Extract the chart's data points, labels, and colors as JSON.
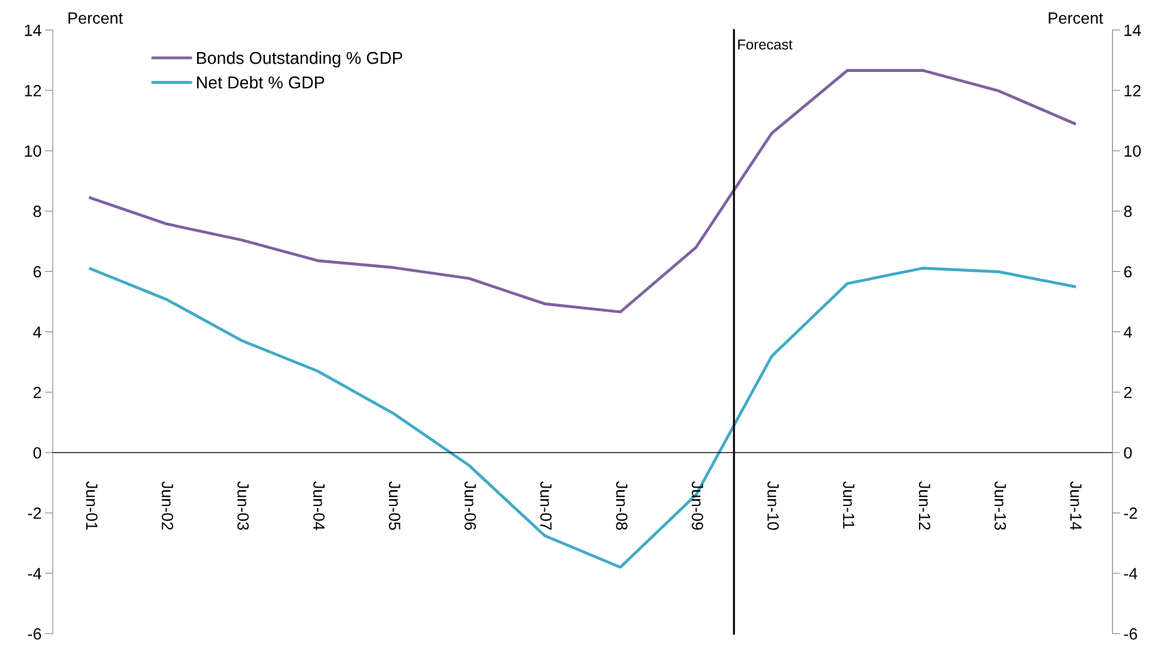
{
  "chart_data": {
    "type": "line",
    "ylabel": "Percent",
    "y2label": "Percent",
    "x": [
      "2001-06",
      "2002-06",
      "2003-06",
      "2004-06",
      "2005-06",
      "2006-06",
      "2007-06",
      "2008-06",
      "2009-06",
      "2010-06",
      "2011-06",
      "2012-06",
      "2013-06",
      "2014-06"
    ],
    "series": [
      {
        "name": "Bonds Outstanding % GDP",
        "color": "#7e61a0",
        "values": [
          8.44,
          7.58,
          7.04,
          6.36,
          6.13,
          5.77,
          4.93,
          4.66,
          6.8,
          10.58,
          12.66,
          12.66,
          11.98,
          10.9
        ]
      },
      {
        "name": "Net Debt % GDP",
        "color": "#41aac6",
        "values": [
          6.09,
          5.08,
          3.71,
          2.7,
          1.3,
          -0.42,
          -2.75,
          -3.8,
          -1.4,
          3.19,
          5.6,
          6.11,
          5.99,
          5.5
        ]
      }
    ],
    "xlim": [
      "2000-12",
      "2014-12"
    ],
    "xticks": [
      {
        "value": "2001-06",
        "label": "Jun-01"
      },
      {
        "value": "2002-06",
        "label": "Jun-02"
      },
      {
        "value": "2003-06",
        "label": "Jun-03"
      },
      {
        "value": "2004-06",
        "label": "Jun-04"
      },
      {
        "value": "2005-06",
        "label": "Jun-05"
      },
      {
        "value": "2006-06",
        "label": "Jun-06"
      },
      {
        "value": "2007-06",
        "label": "Jun-07"
      },
      {
        "value": "2008-06",
        "label": "Jun-08"
      },
      {
        "value": "2009-06",
        "label": "Jun-09"
      },
      {
        "value": "2010-06",
        "label": "Jun-10"
      },
      {
        "value": "2011-06",
        "label": "Jun-11"
      },
      {
        "value": "2012-06",
        "label": "Jun-12"
      },
      {
        "value": "2013-06",
        "label": "Jun-13"
      },
      {
        "value": "2014-06",
        "label": "Jun-14"
      }
    ],
    "ylim": [
      -6,
      14
    ],
    "yticks": [
      -6,
      -4,
      -2,
      0,
      2,
      4,
      6,
      8,
      10,
      12,
      14
    ],
    "y2lim": [
      -6,
      14
    ],
    "y2ticks": [
      -6,
      -4,
      -2,
      0,
      2,
      4,
      6,
      8,
      10,
      12,
      14
    ],
    "ref_lines": [
      {
        "axis": "x",
        "value": "2009-12",
        "label": "Forecast",
        "color": "#000000"
      }
    ],
    "legend": "top left",
    "grid": false,
    "marker": "none",
    "line_style": "solid"
  }
}
